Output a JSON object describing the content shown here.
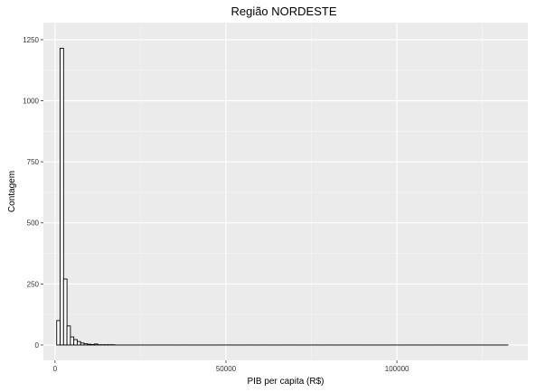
{
  "chart_data": {
    "type": "bar",
    "title": "Região  NORDESTE",
    "xlabel": "PIB per capita (R$)",
    "ylabel": "Contagem",
    "xlim": [
      -3400,
      138300
    ],
    "ylim": [
      -63,
      1320
    ],
    "x_ticks": [
      {
        "value": 0,
        "label": "0"
      },
      {
        "value": 50000,
        "label": "50000"
      },
      {
        "value": 100000,
        "label": "100000"
      }
    ],
    "x_minor_ticks": [
      25000,
      75000,
      125000
    ],
    "y_ticks": [
      {
        "value": 0,
        "label": "0"
      },
      {
        "value": 250,
        "label": "250"
      },
      {
        "value": 500,
        "label": "500"
      },
      {
        "value": 750,
        "label": "750"
      },
      {
        "value": 1000,
        "label": "1000"
      },
      {
        "value": 1250,
        "label": "1250"
      }
    ],
    "y_minor_ticks": [
      125,
      375,
      625,
      875,
      1125
    ],
    "bin_width": 1000,
    "bin_start": 500,
    "counts": [
      100,
      1215,
      270,
      78,
      33,
      22,
      14,
      8,
      5,
      3,
      2,
      4,
      1,
      1,
      1,
      1,
      1,
      0,
      0,
      0,
      0,
      0,
      0,
      0,
      0,
      0,
      0,
      0,
      0,
      0,
      0,
      0,
      0,
      0,
      0,
      0,
      0,
      0,
      0,
      0,
      0,
      0,
      0,
      0,
      0,
      0,
      0,
      0,
      0,
      0,
      0,
      0,
      0,
      0,
      0,
      0,
      0,
      0,
      0,
      0,
      0,
      0,
      0,
      0,
      0,
      0,
      0,
      0,
      0,
      0,
      0,
      0,
      0,
      0,
      0,
      0,
      0,
      0,
      0,
      0,
      0,
      0,
      0,
      0,
      0,
      0,
      0,
      0,
      0,
      0,
      0,
      0,
      0,
      0,
      0,
      0,
      0,
      0,
      0,
      0,
      0,
      0,
      0,
      0,
      0,
      0,
      0,
      0,
      0,
      0,
      0,
      0,
      0,
      0,
      0,
      0,
      0,
      0,
      0,
      0,
      0,
      0,
      0,
      0,
      0,
      0,
      0,
      0,
      0,
      0,
      0,
      0
    ],
    "grid": true,
    "colors": {
      "panel_background": "#ebebeb",
      "grid_major": "#ffffff",
      "grid_minor": "#f5f5f5",
      "bar_fill": "#ffffff",
      "bar_outline": "#000000"
    }
  }
}
